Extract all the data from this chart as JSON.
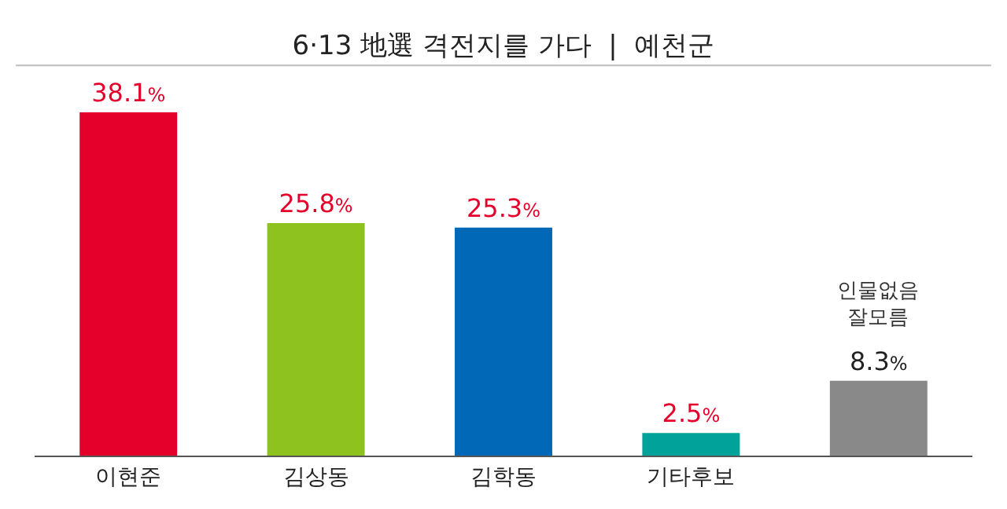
{
  "chart_data": {
    "type": "bar",
    "title": "6·13 地選 격전지를 가다  |  예천군",
    "categories": [
      "이현준",
      "김상동",
      "김학동",
      "기타후보",
      "인물없음\n잘모름"
    ],
    "values": [
      38.1,
      25.8,
      25.3,
      2.5,
      8.3
    ],
    "colors": [
      "#e4002b",
      "#8dc21f",
      "#0068b7",
      "#00a29a",
      "#898989"
    ],
    "value_labels": [
      "38.1%",
      "25.8%",
      "25.3%",
      "2.5%",
      "8.3%"
    ],
    "tick_labels": "x",
    "legend": false
  }
}
